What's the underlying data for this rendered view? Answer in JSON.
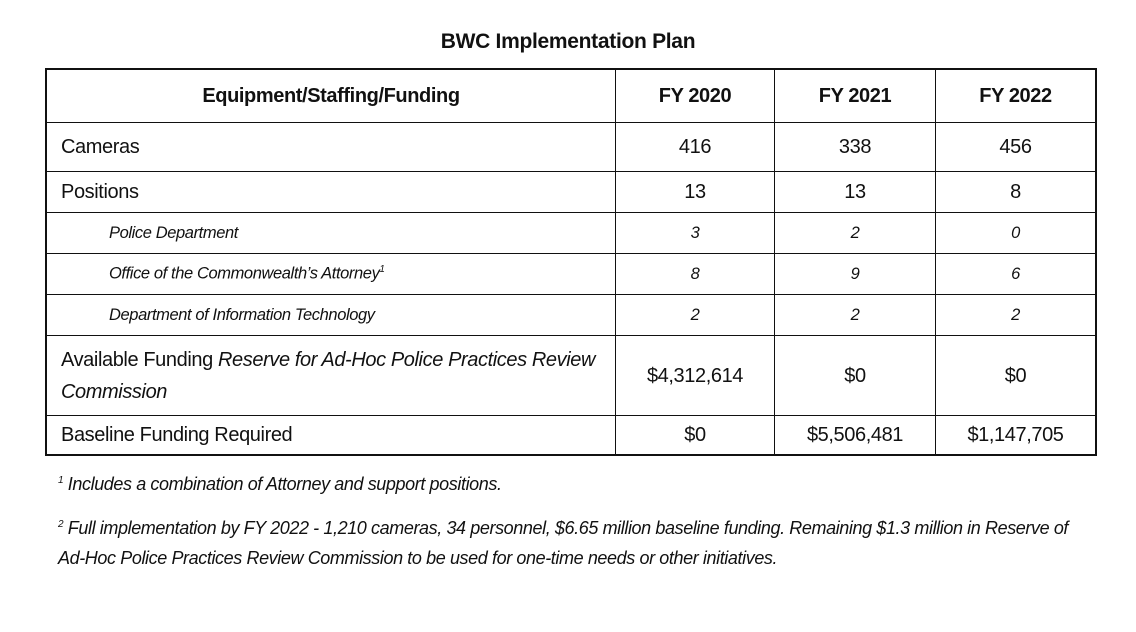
{
  "title": "BWC Implementation Plan",
  "table": {
    "headers": [
      "Equipment/Staffing/Funding",
      "FY 2020",
      "FY 2021",
      "FY 2022"
    ],
    "rows": [
      {
        "label": "Cameras",
        "values": [
          "416",
          "338",
          "456"
        ]
      },
      {
        "label": "Positions",
        "values": [
          "13",
          "13",
          "8"
        ]
      },
      {
        "label": "Police Department",
        "values": [
          "3",
          "2",
          "0"
        ]
      },
      {
        "label": "Office of the Commonwealth’s Attorney",
        "sup": "1",
        "values": [
          "8",
          "9",
          "6"
        ]
      },
      {
        "label": "Department of Information Technology",
        "values": [
          "2",
          "2",
          "2"
        ]
      },
      {
        "label": "Available Funding",
        "label_italic": "Reserve for Ad-Hoc Police Practices Review Commission",
        "values": [
          "$4,312,614",
          "$0",
          "$0"
        ]
      },
      {
        "label": "Baseline Funding Required",
        "values": [
          "$0",
          "$5,506,481",
          "$1,147,705"
        ]
      }
    ]
  },
  "footnotes": [
    {
      "mark": "1",
      "text": "Includes a combination of Attorney and support positions."
    },
    {
      "mark": "2",
      "text": "Full implementation by FY 2022 - 1,210 cameras, 34 personnel, $6.65 million baseline funding. Remaining $1.3 million in Reserve of Ad-Hoc Police Practices Review Commission to be used for one-time needs or other initiatives."
    }
  ]
}
